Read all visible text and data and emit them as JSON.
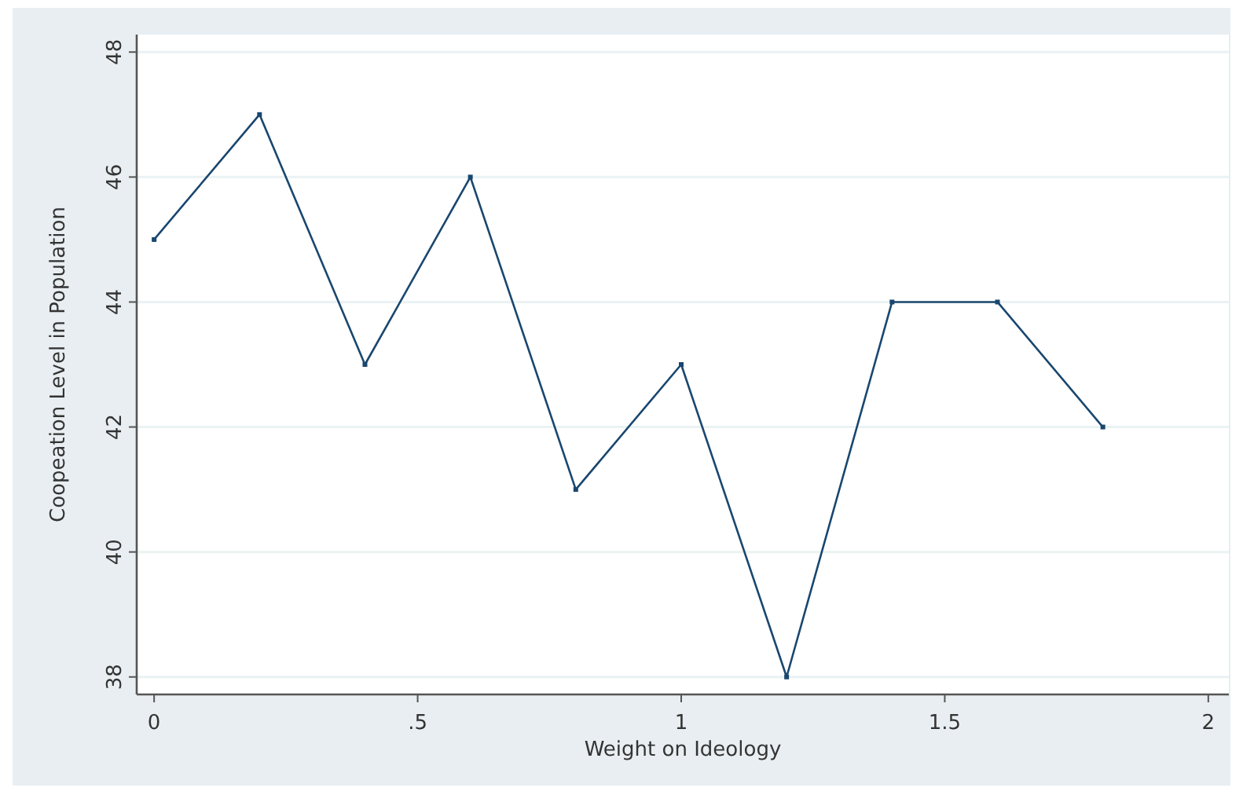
{
  "chart_data": {
    "type": "line",
    "xlabel": "Weight on Ideology",
    "ylabel": "Coopeation Level in Population",
    "x": [
      0,
      0.2,
      0.4,
      0.6,
      0.8,
      1,
      1.2,
      1.4,
      1.6,
      1.8
    ],
    "series": [
      {
        "color": "#1a476f",
        "values": [
          45,
          47,
          43,
          46,
          41,
          43,
          38,
          44,
          44,
          42
        ]
      }
    ],
    "xlim": [
      -0.033,
      2.039
    ],
    "xticks": [
      0,
      {
        "value": 0.5,
        "label": ".5"
      },
      1,
      1.5,
      2
    ],
    "ylim": [
      37.72,
      48.28
    ],
    "yticks": [
      38,
      40,
      42,
      44,
      46,
      48
    ],
    "grid": "y",
    "marker": "square",
    "line_style": "solid"
  }
}
